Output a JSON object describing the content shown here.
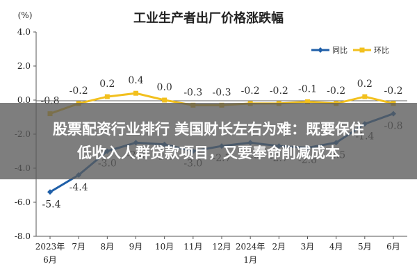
{
  "chart_data": {
    "type": "line",
    "title": "工业生产者出厂价格涨跌幅",
    "ylabel": "(%)",
    "ylim": [
      -8.0,
      4.0
    ],
    "yticks": [
      "4.0",
      "2.0",
      "0.0",
      "-2.0",
      "-4.0",
      "-6.0",
      "-8.0"
    ],
    "categories": [
      [
        "2023年",
        "6月"
      ],
      [
        "7月"
      ],
      [
        "8月"
      ],
      [
        "9月"
      ],
      [
        "10月"
      ],
      [
        "11月"
      ],
      [
        "12月"
      ],
      [
        "2024年",
        "1月"
      ],
      [
        "2月"
      ],
      [
        "3月"
      ],
      [
        "4月"
      ],
      [
        "5月"
      ],
      [
        "6月"
      ]
    ],
    "legend_position": "top-right",
    "grid": false,
    "series": [
      {
        "name": "同比",
        "color": "#1f5fa8",
        "values": [
          -5.4,
          -4.4,
          -3.0,
          -2.5,
          -2.6,
          -3.0,
          -2.7,
          -2.5,
          -2.7,
          -2.8,
          -2.5,
          -1.4,
          -0.8
        ],
        "labels": [
          "-5.4",
          "-4.4",
          "-3.0",
          "-2.5",
          "-2.6",
          "-3.0",
          "-2.7",
          "-2.5",
          "-2.7",
          "-2.8",
          "-2.5",
          "-1.4",
          "-0.8"
        ]
      },
      {
        "name": "环比",
        "color": "#f2c01e",
        "values": [
          -0.8,
          -0.2,
          0.2,
          0.4,
          0.0,
          -0.3,
          -0.3,
          -0.2,
          -0.2,
          -0.1,
          -0.2,
          0.2,
          -0.2
        ],
        "labels": [
          "-0.8",
          "-0.2",
          "0.2",
          "0.4",
          "0.0",
          "-0.3",
          "-0.3",
          "-0.2",
          "-0.2",
          "-0.1",
          "-0.2",
          "0.2",
          "-0.2"
        ]
      }
    ]
  },
  "overlay": {
    "line1": "股票配资行业排行 美国财长左右为难：既要保住",
    "line2": "低收入人群贷款项目，又要奉命削减成本"
  }
}
